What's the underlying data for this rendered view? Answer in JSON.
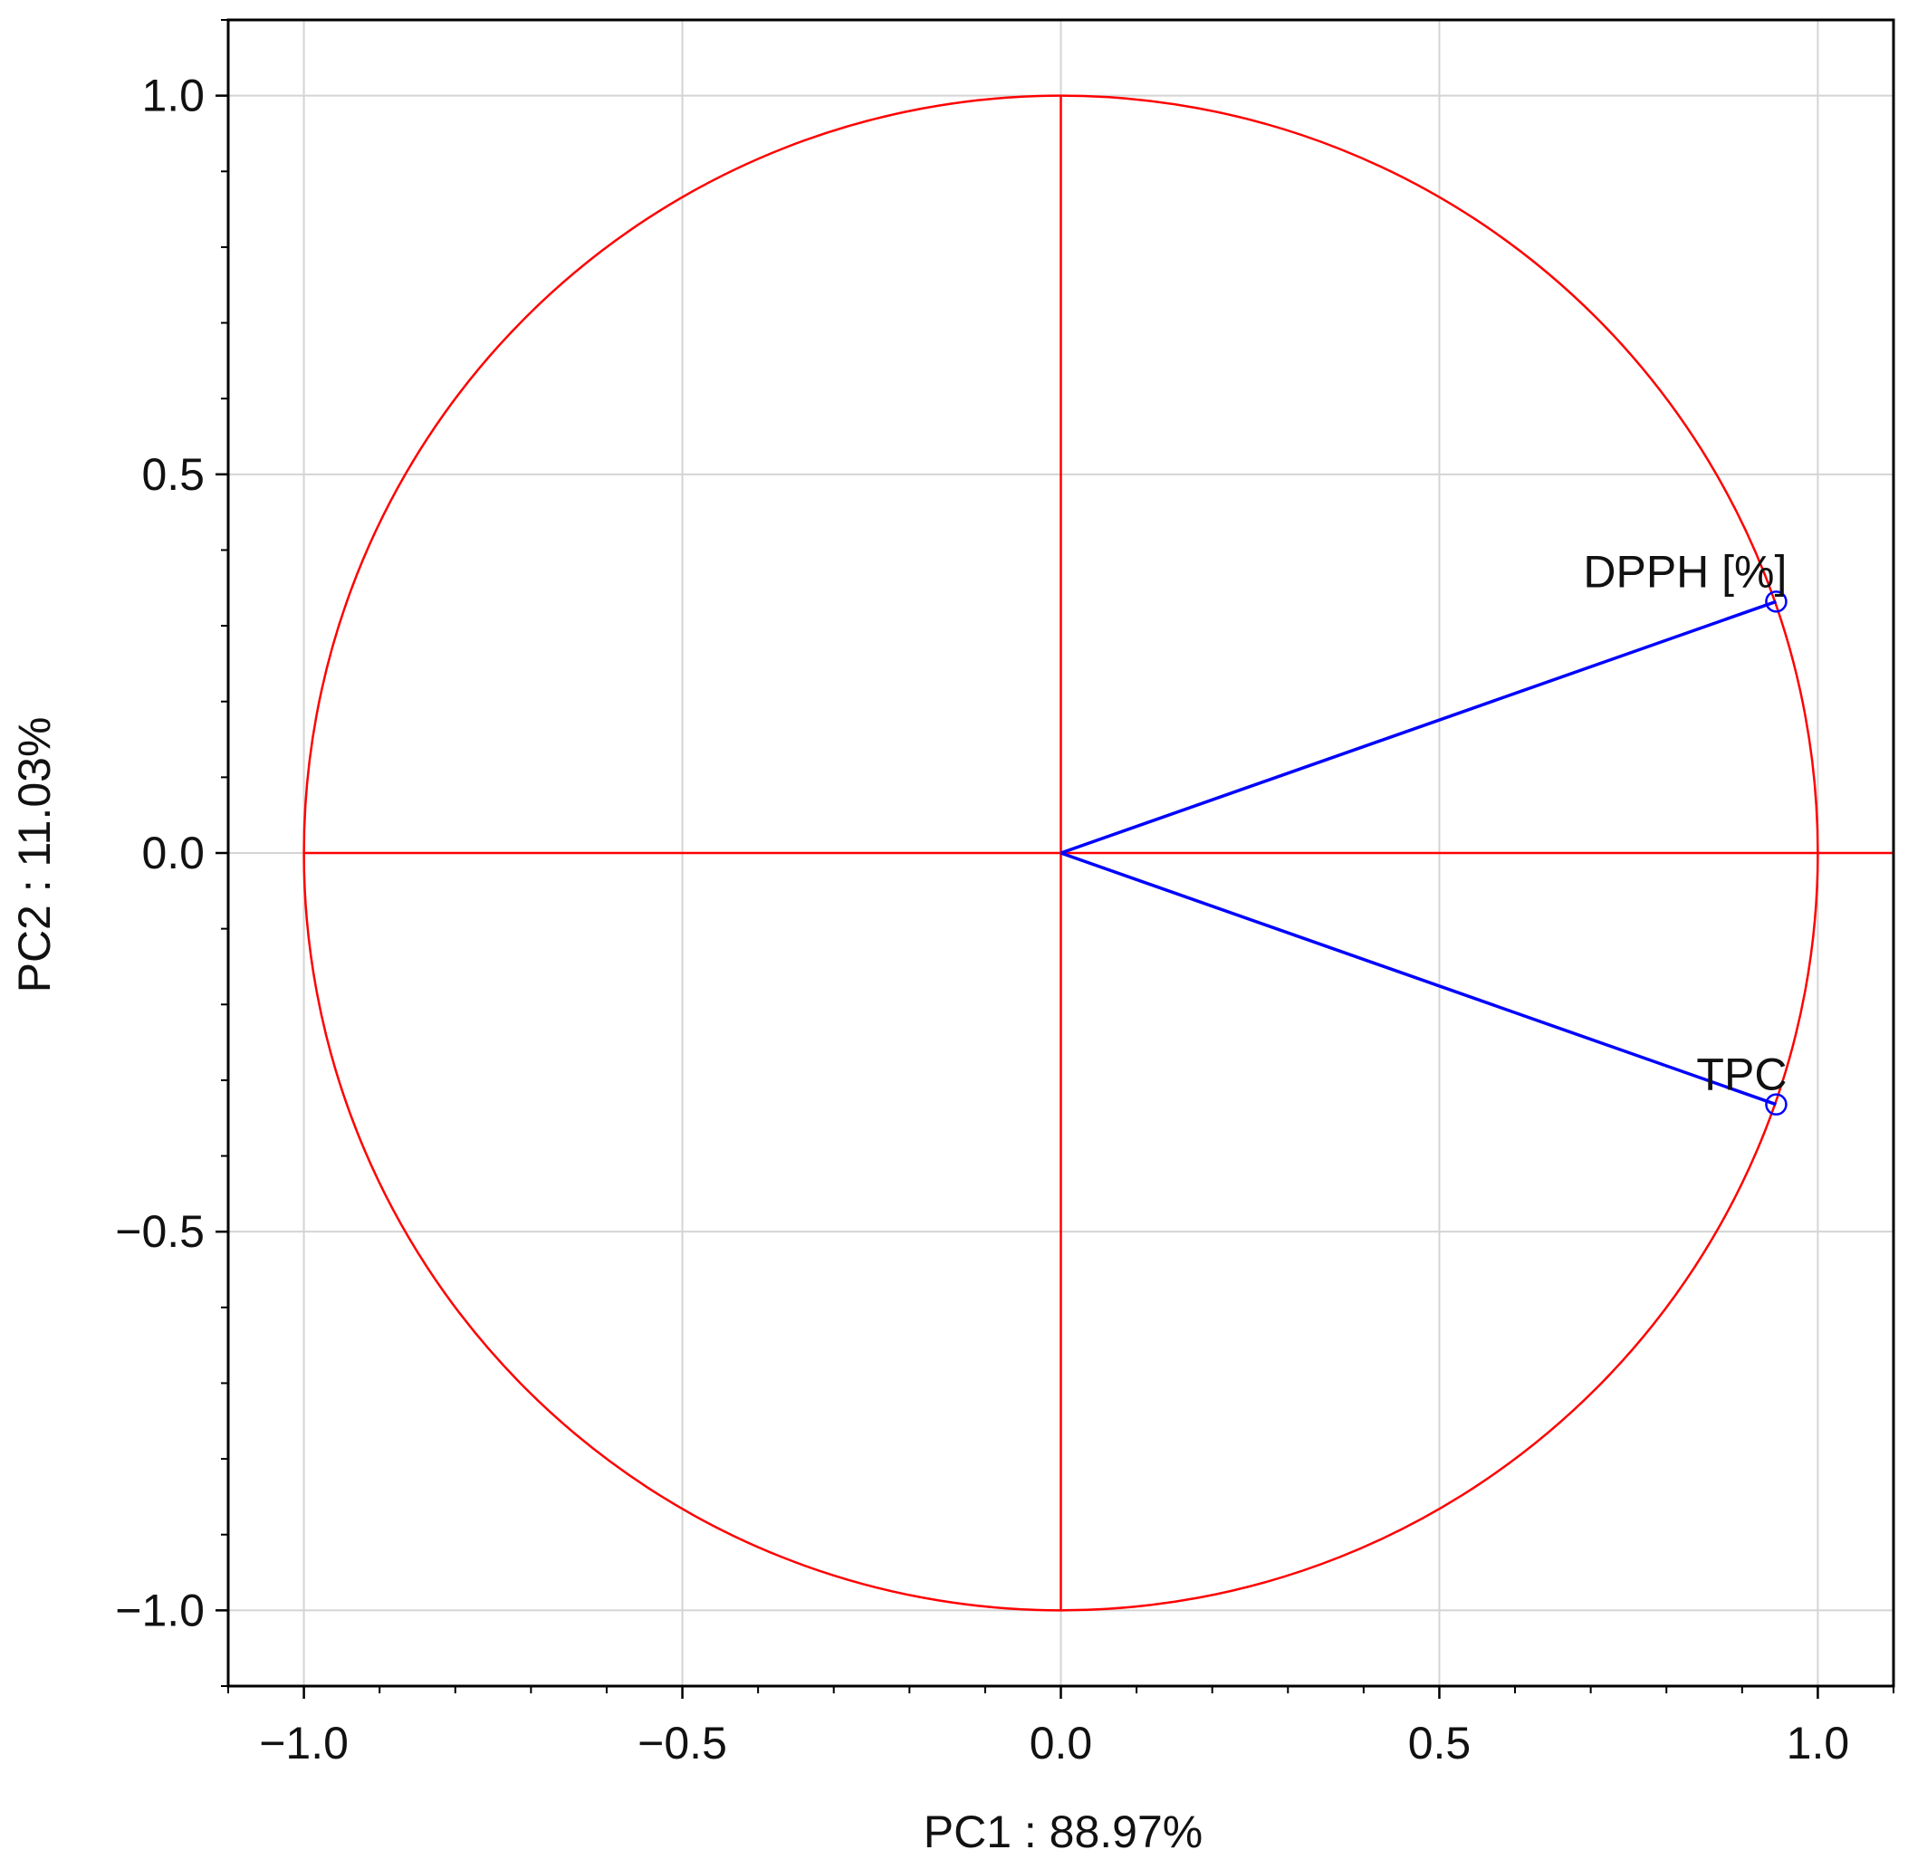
{
  "chart_data": {
    "type": "scatter",
    "title": "",
    "xlabel": "PC1 : 88.97%",
    "ylabel": "PC2 : 11.03%",
    "xlim": [
      -1.1,
      1.1
    ],
    "ylim": [
      -1.1,
      1.1
    ],
    "x_ticks": [
      -1.0,
      -0.5,
      0.0,
      0.5,
      1.0
    ],
    "x_tick_labels": [
      "−1.0",
      "−0.5",
      "0.0",
      "0.5",
      "1.0"
    ],
    "y_ticks": [
      1.0,
      0.5,
      0.0,
      -0.5,
      -1.0
    ],
    "y_tick_labels": [
      "1.0",
      "0.5",
      "0.0",
      "−0.5",
      "−1.0"
    ],
    "grid": true,
    "unit_circle_radius": 1.0,
    "points": [
      {
        "label": "DPPH [%]",
        "x": 0.945,
        "y": 0.332
      },
      {
        "label": "TPC",
        "x": 0.945,
        "y": -0.332
      }
    ]
  },
  "colors": {
    "circle": "#ff0000",
    "axes_cross": "#ff0000",
    "vectors": "#0000ff",
    "grid": "#d4d4d4",
    "frame": "#000000"
  }
}
